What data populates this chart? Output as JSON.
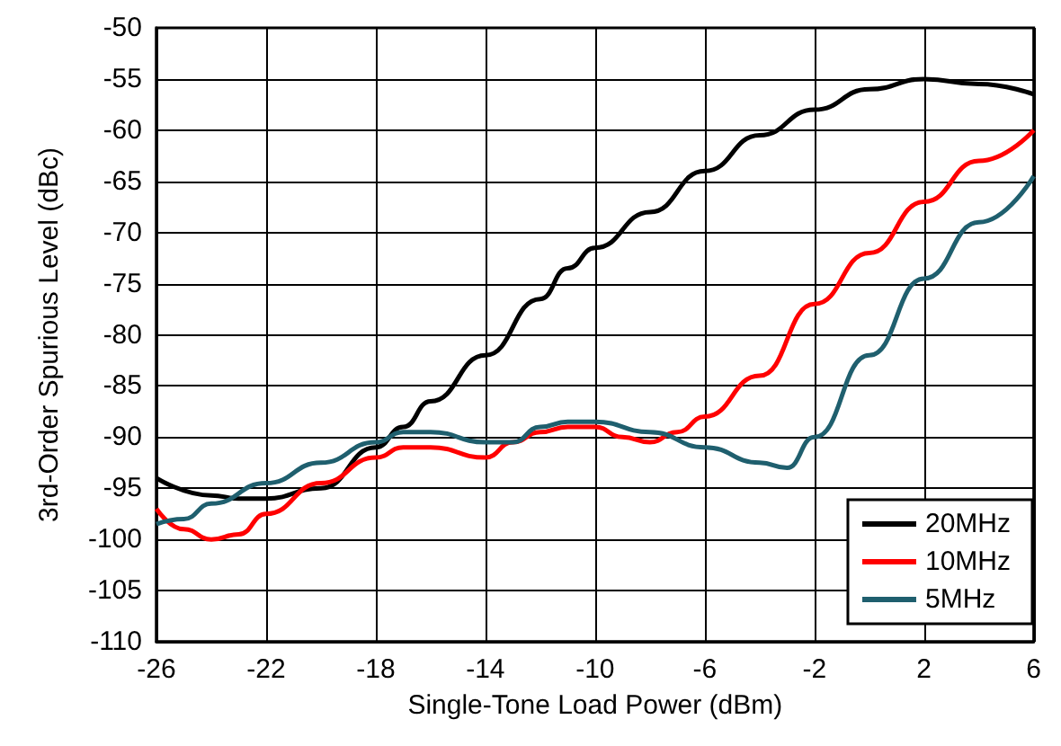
{
  "chart_data": {
    "type": "line",
    "xlabel": "Single-Tone Load Power (dBm)",
    "ylabel": "3rd-Order Spurious Level (dBc)",
    "xlim": [
      -26,
      6
    ],
    "xticks": [
      -26,
      -22,
      -18,
      -14,
      -10,
      -6,
      -2,
      2,
      6
    ],
    "ylim": [
      -110,
      -50
    ],
    "yticks": [
      -110,
      -105,
      -100,
      -95,
      -90,
      -85,
      -80,
      -75,
      -70,
      -65,
      -60,
      -55,
      -50
    ],
    "grid": true,
    "legend": "bottom right",
    "marker": "none",
    "line_style": "solid",
    "series": [
      {
        "name": "20MHz",
        "color": "#000000",
        "x": [
          -26,
          -24,
          -23,
          -22,
          -20,
          -18,
          -17,
          -16,
          -14,
          -12,
          -11,
          -10,
          -8,
          -6,
          -4,
          -2,
          0,
          2,
          4,
          6
        ],
        "values": [
          -94,
          -95.7,
          -96,
          -96,
          -95,
          -91,
          -89,
          -86.5,
          -82,
          -76.5,
          -73.5,
          -71.5,
          -68,
          -64,
          -60.5,
          -58,
          -56,
          -55,
          -55.5,
          -56.5
        ]
      },
      {
        "name": "10MHz",
        "color": "#ff0000",
        "x": [
          -26,
          -25,
          -24,
          -23,
          -22,
          -20,
          -18,
          -17,
          -16,
          -14,
          -13,
          -12,
          -11,
          -10,
          -9,
          -8,
          -7,
          -6,
          -4,
          -2,
          0,
          2,
          4,
          6
        ],
        "values": [
          -97,
          -99,
          -100,
          -99.5,
          -97.5,
          -94.5,
          -92,
          -91,
          -91,
          -92,
          -90.5,
          -89.5,
          -89,
          -89,
          -90,
          -90.5,
          -89.5,
          -88,
          -84,
          -77,
          -72,
          -67,
          -63,
          -60
        ]
      },
      {
        "name": "5MHz",
        "color": "#1f5f6e",
        "x": [
          -26,
          -25,
          -24,
          -22,
          -20,
          -18,
          -17,
          -16,
          -14,
          -13,
          -12,
          -11,
          -10,
          -8,
          -6,
          -4,
          -3,
          -2,
          0,
          2,
          4,
          6
        ],
        "values": [
          -98.5,
          -98,
          -96.5,
          -94.5,
          -92.5,
          -90.5,
          -89.5,
          -89.5,
          -90.5,
          -90.5,
          -89,
          -88.5,
          -88.5,
          -89.5,
          -91,
          -92.5,
          -93,
          -90,
          -82,
          -74.5,
          -69,
          -64.5
        ]
      }
    ]
  }
}
